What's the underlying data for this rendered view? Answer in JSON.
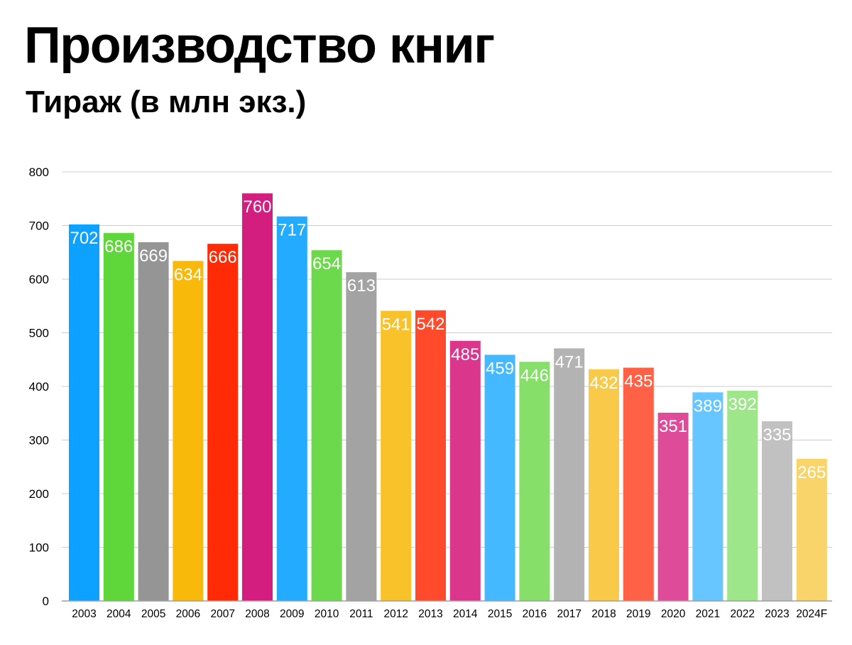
{
  "header": {
    "title": "Производство книг",
    "subtitle": "Тираж (в млн экз.)"
  },
  "chart_data": {
    "type": "bar",
    "title": "Производство книг",
    "subtitle": "Тираж (в млн экз.)",
    "xlabel": "",
    "ylabel": "",
    "ylim": [
      0,
      800
    ],
    "yticks": [
      0,
      100,
      200,
      300,
      400,
      500,
      600,
      700,
      800
    ],
    "grid": true,
    "legend": "none",
    "categories": [
      "2003",
      "2004",
      "2005",
      "2006",
      "2007",
      "2008",
      "2009",
      "2010",
      "2011",
      "2012",
      "2013",
      "2014",
      "2015",
      "2016",
      "2017",
      "2018",
      "2019",
      "2020",
      "2021",
      "2022",
      "2023",
      "2024F"
    ],
    "values": [
      702,
      686,
      669,
      634,
      666,
      760,
      717,
      654,
      613,
      541,
      542,
      485,
      459,
      446,
      471,
      432,
      435,
      351,
      389,
      392,
      335,
      265
    ],
    "colors": [
      "#0da2ff",
      "#5fd63a",
      "#959595",
      "#f9b90b",
      "#ff2b07",
      "#d31d7f",
      "#23abff",
      "#6cd94c",
      "#a3a3a3",
      "#f9c12a",
      "#ff4a2c",
      "#d9368c",
      "#45b9ff",
      "#85df69",
      "#b3b3b3",
      "#f9ca4a",
      "#ff6147",
      "#de4c99",
      "#67c5ff",
      "#9ee68a",
      "#c1c1c1",
      "#f9d46b"
    ],
    "gridline_color": "#cccccc",
    "axis_color": "#9e9e9e",
    "label_color": "#ffffff"
  }
}
